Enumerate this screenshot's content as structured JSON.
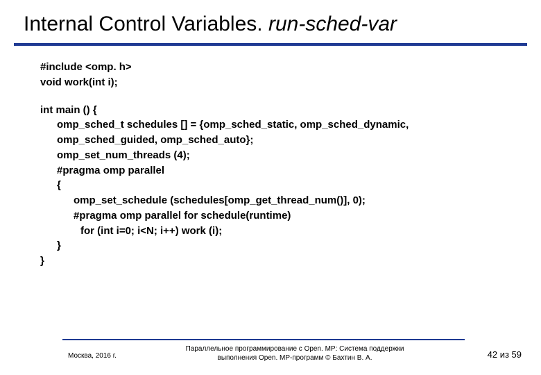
{
  "title": {
    "plain": "Internal Control Variables. ",
    "italic": "run-sched-var"
  },
  "code": {
    "l1": "#include <omp. h>",
    "l2": "void work(int i);",
    "l3": "int main () {",
    "l4": "omp_sched_t schedules [] = {omp_sched_static, omp_sched_dynamic,",
    "l5": " omp_sched_guided, omp_sched_auto};",
    "l6": "omp_set_num_threads (4);",
    "l7": "#pragma omp parallel",
    "l8": "{",
    "l9": "omp_set_schedule (schedules[omp_get_thread_num()], 0);",
    "l10": "#pragma omp parallel for schedule(runtime)",
    "l11": " for (int i=0; i<N; i++)  work (i);",
    "l12": "}",
    "l13": "}"
  },
  "footer": {
    "left": "Москва, 2016 г.",
    "center_line1": "Параллельное программирование с Open. MP: Система поддержки",
    "center_line2": "выполнения Open. MP-программ © Бахтин В. А.",
    "right": "42 из 59"
  },
  "colors": {
    "rule": "#1f3a93",
    "text": "#000000",
    "background": "#ffffff"
  }
}
